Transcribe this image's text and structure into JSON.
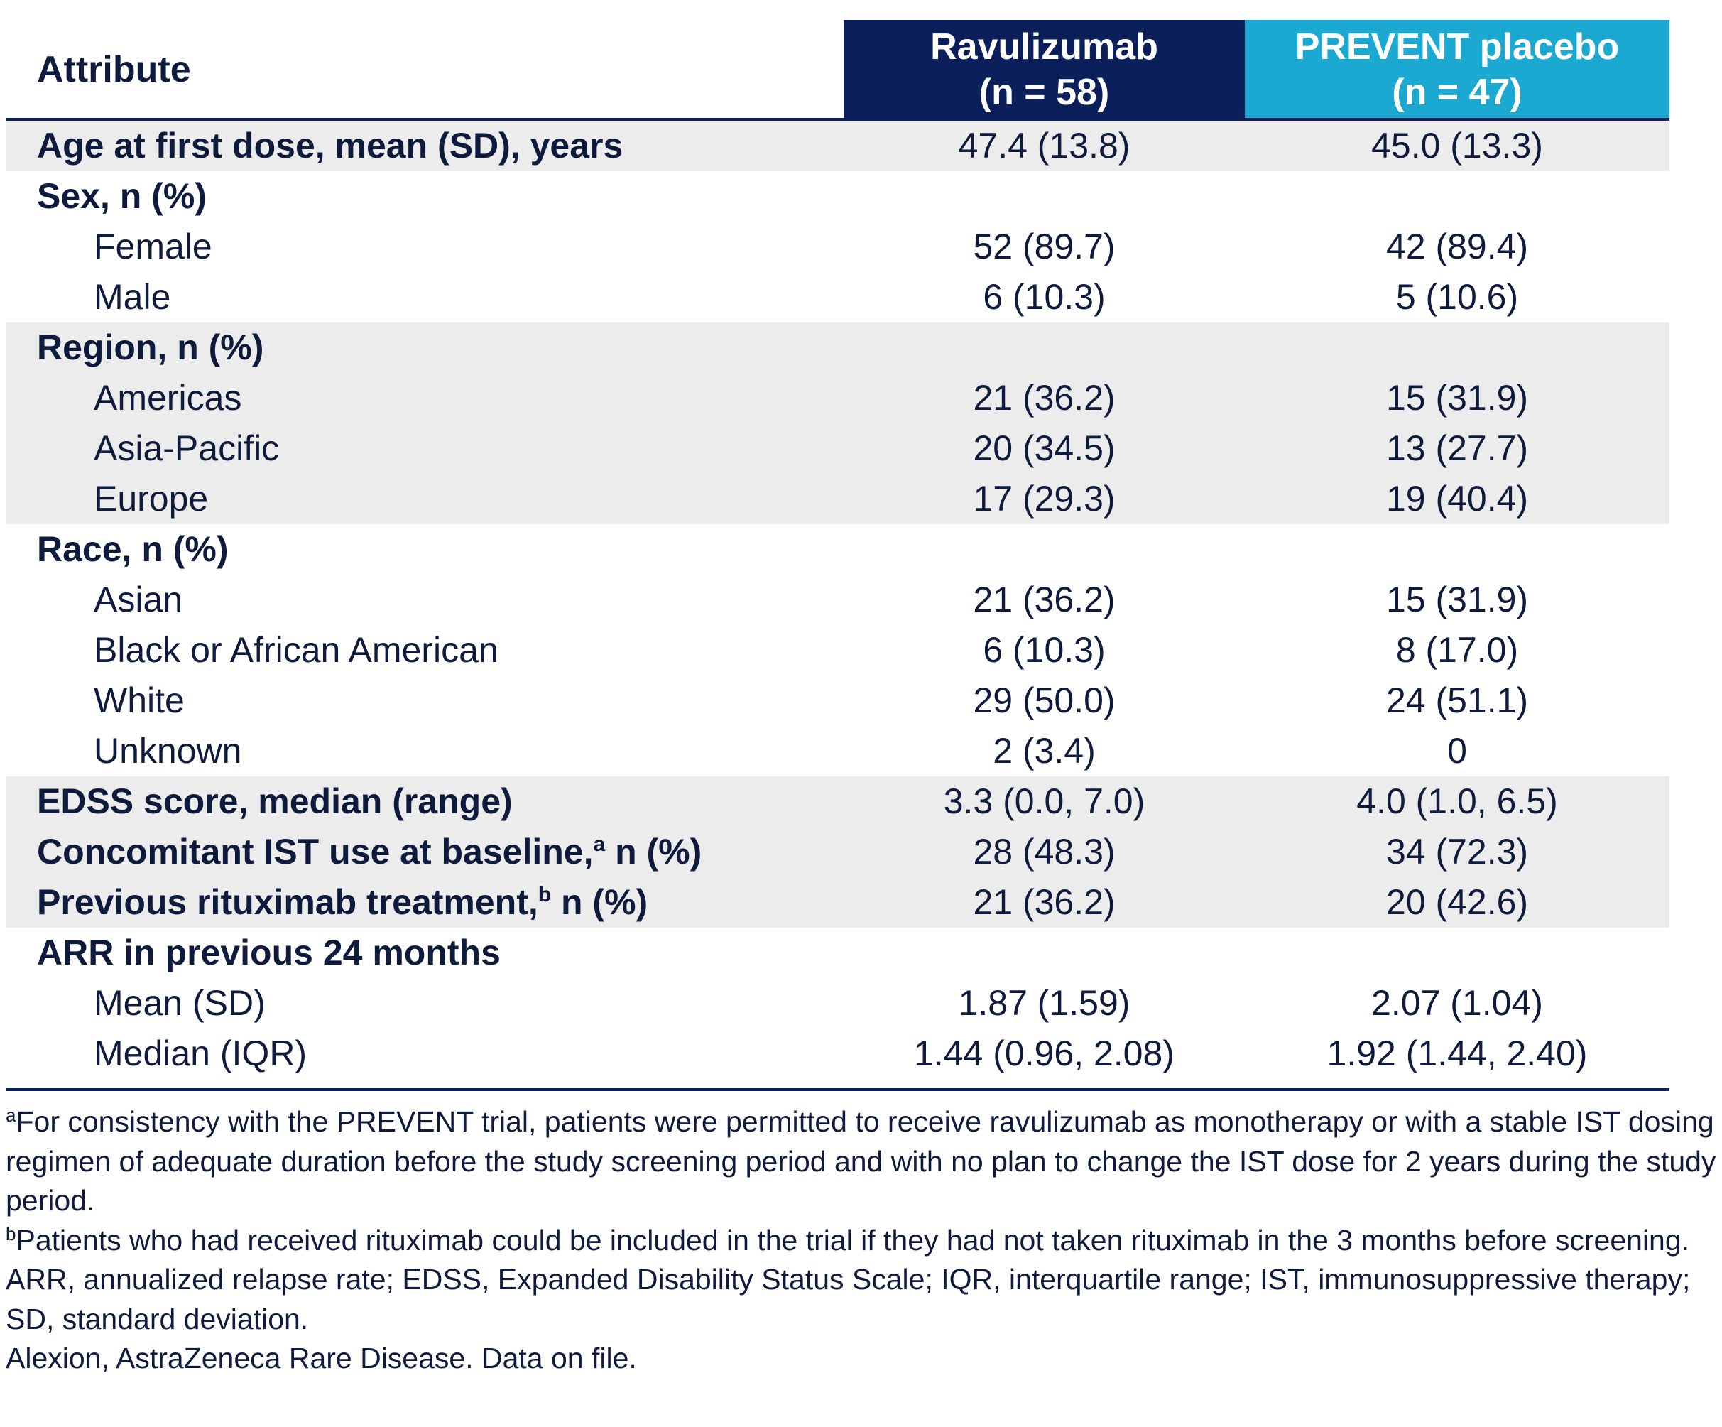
{
  "header": {
    "attribute": "Attribute",
    "ravulizumab_line1": "Ravulizumab",
    "ravulizumab_line2": "(n = 58)",
    "placebo_line1": "PREVENT placebo",
    "placebo_line2": "(n = 47)"
  },
  "rows": {
    "age": {
      "label": "Age at first dose, mean (SD), years",
      "rav": "47.4 (13.8)",
      "pla": "45.0 (13.3)"
    },
    "sex": {
      "label": "Sex, n (%)"
    },
    "female": {
      "label": "Female",
      "rav": "52 (89.7)",
      "pla": "42 (89.4)"
    },
    "male": {
      "label": "Male",
      "rav": "6 (10.3)",
      "pla": "5 (10.6)"
    },
    "region": {
      "label": "Region, n (%)"
    },
    "americas": {
      "label": "Americas",
      "rav": "21 (36.2)",
      "pla": "15 (31.9)"
    },
    "asia_pacific": {
      "label": "Asia-Pacific",
      "rav": "20 (34.5)",
      "pla": "13 (27.7)"
    },
    "europe": {
      "label": "Europe",
      "rav": "17 (29.3)",
      "pla": "19 (40.4)"
    },
    "race": {
      "label": "Race, n (%)"
    },
    "asian": {
      "label": "Asian",
      "rav": "21 (36.2)",
      "pla": "15 (31.9)"
    },
    "black": {
      "label": "Black or African American",
      "rav": "6 (10.3)",
      "pla": "8 (17.0)"
    },
    "white": {
      "label": "White",
      "rav": "29 (50.0)",
      "pla": "24 (51.1)"
    },
    "unknown": {
      "label": "Unknown",
      "rav": "2 (3.4)",
      "pla": "0"
    },
    "edss": {
      "label": "EDSS score, median (range)",
      "rav": "3.3 (0.0, 7.0)",
      "pla": "4.0 (1.0, 6.5)"
    },
    "ist": {
      "label": "Concomitant IST use at baseline,",
      "sup": "a",
      "suffix": " n (%)",
      "rav": "28 (48.3)",
      "pla": "34 (72.3)"
    },
    "rituximab": {
      "label": "Previous rituximab treatment,",
      "sup": "b",
      "suffix": " n (%)",
      "rav": "21 (36.2)",
      "pla": "20 (42.6)"
    },
    "arr": {
      "label": "ARR in previous 24 months"
    },
    "arr_mean": {
      "label": "Mean (SD)",
      "rav": "1.87 (1.59)",
      "pla": "2.07 (1.04)"
    },
    "arr_median": {
      "label": "Median (IQR)",
      "rav": "1.44 (0.96, 2.08)",
      "pla": "1.92 (1.44, 2.40)"
    }
  },
  "footnotes": {
    "a_mark": "a",
    "a_text": "For consistency with the PREVENT trial, patients were permitted to receive ravulizumab as monotherapy or with a stable IST dosing regimen of adequate duration before the study screening period and with no plan to change the IST dose for 2 years during the study period.",
    "b_mark": "b",
    "b_text": "Patients who had received rituximab could be included in the trial if they had not taken rituximab in the 3 months before screening.",
    "abbreviations": "ARR, annualized relapse rate; EDSS, Expanded Disability Status Scale; IQR, interquartile range; IST, immunosuppressive therapy; SD, standard deviation.",
    "source": "Alexion, AstraZeneca Rare Disease. Data on file."
  },
  "colors": {
    "ravulizumab_header": "#0b1f5a",
    "placebo_header": "#1ba9d1",
    "row_shade": "#ececec",
    "text": "#0e1b3d"
  }
}
